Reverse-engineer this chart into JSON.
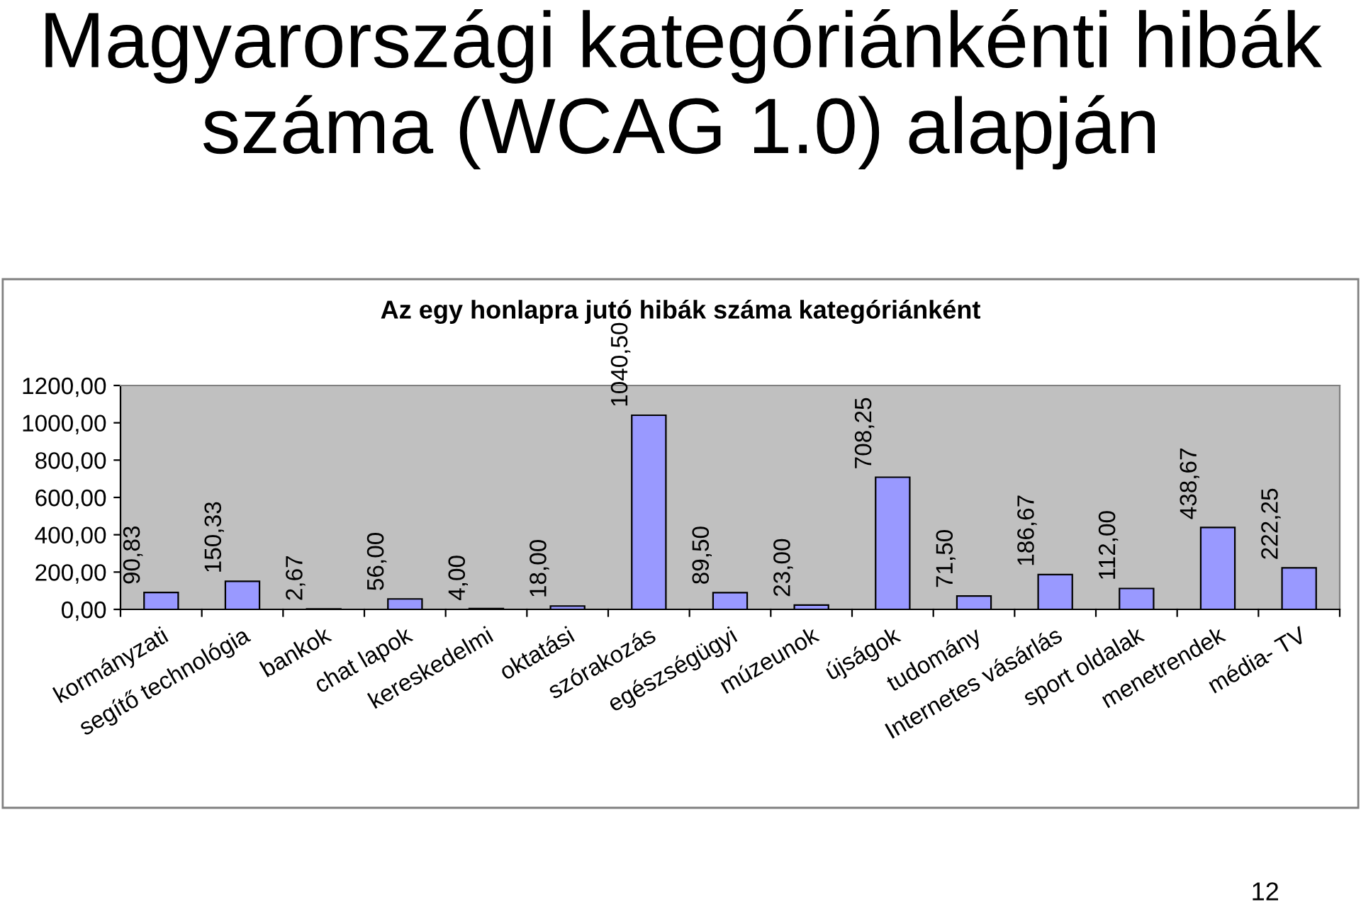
{
  "chart_data": {
    "type": "bar",
    "title": "Az egy honlapra jutó hibák száma kategóriánként",
    "subtitle": "Magyarországi kategóriánkénti hibák száma (WCAG 1.0) alapján",
    "categories": [
      "kormányzati",
      "segítő technológia",
      "bankok",
      "chat lapok",
      "kereskedelmi",
      "oktatási",
      "szórakozás",
      "egészségügyi",
      "múzeunok",
      "újságok",
      "tudomány",
      "Internetes vásárlás",
      "sport oldalak",
      "menetrendek",
      "média- TV"
    ],
    "values": [
      90.83,
      150.33,
      2.67,
      56.0,
      4.0,
      18.0,
      1040.5,
      89.5,
      23.0,
      708.25,
      71.5,
      186.67,
      112.0,
      438.67,
      222.25
    ],
    "value_labels": [
      "90,83",
      "150,33",
      "2,67",
      "56,00",
      "4,00",
      "18,00",
      "1040,50",
      "89,50",
      "23,00",
      "708,25",
      "71,50",
      "186,67",
      "112,00",
      "438,67",
      "222,25"
    ],
    "color": "#9999ff",
    "ylim": [
      0,
      1200
    ],
    "yticks": [
      {
        "value": 0,
        "label": "0,00"
      },
      {
        "value": 200,
        "label": "200,00"
      },
      {
        "value": 400,
        "label": "400,00"
      },
      {
        "value": 600,
        "label": "600,00"
      },
      {
        "value": 800,
        "label": "800,00"
      },
      {
        "value": 1000,
        "label": "1000,00"
      },
      {
        "value": 1200,
        "label": "1200,00"
      }
    ],
    "grid": false,
    "annotations": [
      "12"
    ]
  }
}
